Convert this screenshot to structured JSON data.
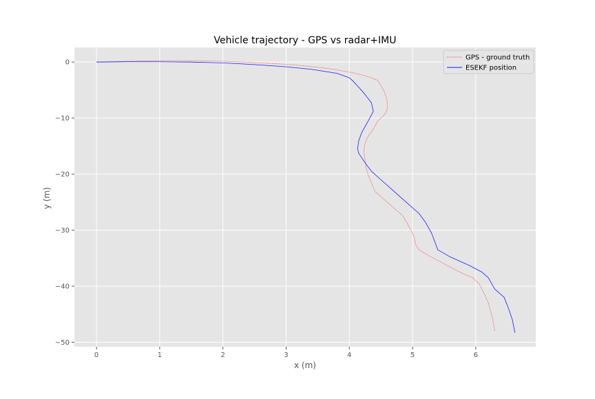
{
  "chart_data": {
    "type": "line",
    "title": "Vehicle trajectory - GPS vs radar+IMU",
    "xlabel": "x (m)",
    "ylabel": "y (m)",
    "xlim": [
      -0.35,
      6.95
    ],
    "ylim": [
      -50.8,
      2.6
    ],
    "x_ticks": [
      0,
      1,
      2,
      3,
      4,
      5,
      6
    ],
    "y_ticks": [
      0,
      -10,
      -20,
      -30,
      -40,
      -50
    ],
    "x_tick_labels": [
      "0",
      "1",
      "2",
      "3",
      "4",
      "5",
      "6"
    ],
    "y_tick_labels": [
      "0",
      "−10",
      "−20",
      "−30",
      "−40",
      "−50"
    ],
    "grid": true,
    "legend_position": "upper right",
    "series": [
      {
        "name": "GPS - ground truth",
        "color": "#e8372c",
        "style": "dotted",
        "points": [
          [
            0.0,
            0.0
          ],
          [
            0.5,
            0.15
          ],
          [
            1.0,
            0.25
          ],
          [
            1.5,
            0.25
          ],
          [
            2.0,
            0.15
          ],
          [
            2.5,
            -0.1
          ],
          [
            3.0,
            -0.4
          ],
          [
            3.4,
            -0.8
          ],
          [
            3.7,
            -1.2
          ],
          [
            4.0,
            -1.8
          ],
          [
            4.2,
            -2.3
          ],
          [
            4.35,
            -2.8
          ],
          [
            4.45,
            -3.3
          ],
          [
            4.5,
            -4.2
          ],
          [
            4.55,
            -5.2
          ],
          [
            4.58,
            -6.2
          ],
          [
            4.6,
            -7.0
          ],
          [
            4.6,
            -8.5
          ],
          [
            4.55,
            -9.5
          ],
          [
            4.45,
            -10.5
          ],
          [
            4.38,
            -12.0
          ],
          [
            4.3,
            -13.2
          ],
          [
            4.25,
            -14.5
          ],
          [
            4.23,
            -16.0
          ],
          [
            4.25,
            -17.5
          ],
          [
            4.27,
            -19.0
          ],
          [
            4.3,
            -20.2
          ],
          [
            4.35,
            -21.5
          ],
          [
            4.4,
            -23.0
          ],
          [
            4.5,
            -24.0
          ],
          [
            4.65,
            -25.5
          ],
          [
            4.85,
            -27.5
          ],
          [
            4.95,
            -29.5
          ],
          [
            5.02,
            -31.0
          ],
          [
            5.05,
            -32.5
          ],
          [
            5.1,
            -33.5
          ],
          [
            5.25,
            -34.5
          ],
          [
            5.5,
            -36.0
          ],
          [
            5.75,
            -37.5
          ],
          [
            5.95,
            -38.5
          ],
          [
            6.05,
            -39.5
          ],
          [
            6.12,
            -41.0
          ],
          [
            6.2,
            -43.0
          ],
          [
            6.25,
            -45.0
          ],
          [
            6.28,
            -46.5
          ],
          [
            6.3,
            -48.0
          ]
        ]
      },
      {
        "name": "ESEKF position",
        "color": "#1a1aff",
        "style": "solid",
        "points": [
          [
            0.0,
            0.0
          ],
          [
            0.5,
            0.05
          ],
          [
            1.0,
            0.05
          ],
          [
            1.5,
            0.0
          ],
          [
            2.0,
            -0.15
          ],
          [
            2.5,
            -0.45
          ],
          [
            3.0,
            -0.85
          ],
          [
            3.4,
            -1.3
          ],
          [
            3.8,
            -2.0
          ],
          [
            4.0,
            -2.8
          ],
          [
            4.05,
            -3.3
          ],
          [
            4.15,
            -4.5
          ],
          [
            4.25,
            -5.8
          ],
          [
            4.35,
            -7.3
          ],
          [
            4.38,
            -8.8
          ],
          [
            4.3,
            -10.5
          ],
          [
            4.2,
            -12.5
          ],
          [
            4.15,
            -14.0
          ],
          [
            4.13,
            -15.5
          ],
          [
            4.15,
            -16.3
          ],
          [
            4.25,
            -18.0
          ],
          [
            4.35,
            -19.5
          ],
          [
            4.5,
            -21.0
          ],
          [
            4.7,
            -23.0
          ],
          [
            4.95,
            -25.5
          ],
          [
            5.1,
            -27.0
          ],
          [
            5.2,
            -28.5
          ],
          [
            5.3,
            -30.5
          ],
          [
            5.4,
            -33.5
          ],
          [
            5.6,
            -34.8
          ],
          [
            5.9,
            -36.3
          ],
          [
            6.1,
            -37.5
          ],
          [
            6.2,
            -38.5
          ],
          [
            6.3,
            -40.5
          ],
          [
            6.45,
            -42.0
          ],
          [
            6.52,
            -44.0
          ],
          [
            6.58,
            -46.0
          ],
          [
            6.62,
            -48.3
          ]
        ]
      }
    ]
  }
}
